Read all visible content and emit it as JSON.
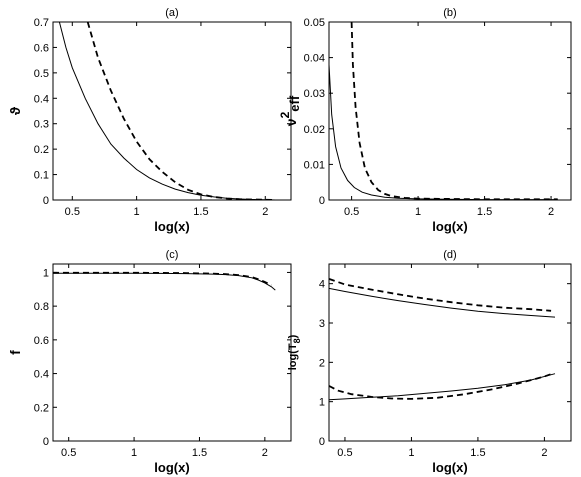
{
  "chart_data": [
    {
      "type": "line",
      "title": "(a)",
      "xlabel": "log(x)",
      "ylabel": "ϑ",
      "xlim": [
        0.35,
        2.2
      ],
      "ylim": [
        0,
        0.7
      ],
      "xticks": [
        0.5,
        1,
        1.5,
        2
      ],
      "xtick_labels": [
        "0.5",
        "1",
        "1.5",
        "2"
      ],
      "yticks": [
        0,
        0.1,
        0.2,
        0.3,
        0.4,
        0.5,
        0.6,
        0.7
      ],
      "ytick_labels": [
        "0",
        "0.1",
        "0.2",
        "0.3",
        "0.4",
        "0.5",
        "0.6",
        "0.7"
      ],
      "grid": false,
      "series": [
        {
          "style": "solid",
          "color": "#000000",
          "x": [
            0.4,
            0.45,
            0.5,
            0.6,
            0.7,
            0.8,
            0.9,
            1.0,
            1.1,
            1.2,
            1.3,
            1.4,
            1.5,
            1.6,
            1.7,
            1.8,
            1.9,
            2.0,
            2.08
          ],
          "y": [
            0.7,
            0.6,
            0.52,
            0.4,
            0.3,
            0.22,
            0.165,
            0.12,
            0.087,
            0.062,
            0.043,
            0.029,
            0.019,
            0.012,
            0.007,
            0.004,
            0.002,
            0.001,
            0.0
          ]
        },
        {
          "style": "dashed",
          "color": "#000000",
          "x": [
            0.62,
            0.7,
            0.8,
            0.9,
            1.0,
            1.1,
            1.2,
            1.3,
            1.4,
            1.5,
            1.6,
            1.7,
            1.8,
            1.9,
            2.0,
            2.08
          ],
          "y": [
            0.7,
            0.56,
            0.43,
            0.32,
            0.23,
            0.16,
            0.11,
            0.07,
            0.04,
            0.022,
            0.012,
            0.006,
            0.003,
            0.002,
            0.001,
            0.0
          ]
        }
      ]
    },
    {
      "type": "line",
      "title": "(b)",
      "xlabel": "log(x)",
      "ylabel": "ν",
      "ylabel_superscript": "2",
      "ylabel_subscript": "eff",
      "xlim": [
        0.33,
        2.15
      ],
      "ylim": [
        0,
        0.05
      ],
      "xticks": [
        0.5,
        1,
        1.5,
        2
      ],
      "xtick_labels": [
        "0.5",
        "1",
        "1.5",
        "2"
      ],
      "yticks": [
        0,
        0.01,
        0.02,
        0.03,
        0.04,
        0.05
      ],
      "ytick_labels": [
        "0",
        "0.01",
        "0.02",
        "0.03",
        "0.04",
        "0.05"
      ],
      "grid": false,
      "series": [
        {
          "style": "solid",
          "color": "#000000",
          "x": [
            0.33,
            0.35,
            0.38,
            0.42,
            0.47,
            0.52,
            0.58,
            0.65,
            0.75,
            0.85,
            1.0,
            1.2,
            1.5,
            1.8,
            2.05
          ],
          "y": [
            0.038,
            0.024,
            0.015,
            0.009,
            0.0055,
            0.0035,
            0.0022,
            0.0014,
            0.0008,
            0.0005,
            0.0003,
            0.0002,
            0.0001,
            0.0001,
            0.0001
          ]
        },
        {
          "style": "dashed",
          "color": "#000000",
          "x": [
            0.5,
            0.51,
            0.53,
            0.56,
            0.6,
            0.65,
            0.7,
            0.75,
            0.8,
            0.9,
            1.0,
            1.2,
            1.5,
            1.8,
            2.05
          ],
          "y": [
            0.05,
            0.038,
            0.026,
            0.016,
            0.009,
            0.005,
            0.0028,
            0.0017,
            0.0011,
            0.0006,
            0.0004,
            0.0003,
            0.0002,
            0.0002,
            0.0002
          ]
        }
      ]
    },
    {
      "type": "line",
      "title": "(c)",
      "xlabel": "log(x)",
      "ylabel": "f",
      "xlim": [
        0.38,
        2.2
      ],
      "ylim": [
        0,
        1.05
      ],
      "xticks": [
        0.5,
        1,
        1.5,
        2
      ],
      "xtick_labels": [
        "0.5",
        "1",
        "1.5",
        "2"
      ],
      "yticks": [
        0,
        0.2,
        0.4,
        0.6,
        0.8,
        1
      ],
      "ytick_labels": [
        "0",
        "0.2",
        "0.4",
        "0.6",
        "0.8",
        "1"
      ],
      "grid": false,
      "series": [
        {
          "style": "solid",
          "color": "#000000",
          "x": [
            0.38,
            0.6,
            0.8,
            1.0,
            1.2,
            1.4,
            1.6,
            1.7,
            1.8,
            1.9,
            1.95,
            2.0,
            2.05,
            2.08
          ],
          "y": [
            0.995,
            0.995,
            0.995,
            0.995,
            0.994,
            0.993,
            0.99,
            0.987,
            0.981,
            0.968,
            0.955,
            0.938,
            0.915,
            0.895
          ]
        },
        {
          "style": "dashed",
          "color": "#000000",
          "x": [
            0.38,
            0.6,
            0.8,
            1.0,
            1.2,
            1.4,
            1.6,
            1.7,
            1.8,
            1.9,
            1.95,
            2.0,
            2.05
          ],
          "y": [
            0.998,
            0.998,
            0.998,
            0.998,
            0.997,
            0.996,
            0.993,
            0.99,
            0.984,
            0.972,
            0.96,
            0.944,
            0.925
          ]
        }
      ]
    },
    {
      "type": "line",
      "title": "(d)",
      "xlabel": "log(x)",
      "ylabel": "log(T",
      "ylabel_subscript": "8",
      "ylabel_suffix": ")",
      "xlim": [
        0.38,
        2.2
      ],
      "ylim": [
        0,
        4.5
      ],
      "xticks": [
        0.5,
        1,
        1.5,
        2
      ],
      "xtick_labels": [
        "0.5",
        "1",
        "1.5",
        "2"
      ],
      "yticks": [
        0,
        1,
        2,
        3,
        4
      ],
      "ytick_labels": [
        "0",
        "1",
        "2",
        "3",
        "4"
      ],
      "grid": false,
      "series": [
        {
          "style": "solid",
          "color": "#000000",
          "x": [
            0.38,
            0.5,
            0.7,
            0.9,
            1.1,
            1.3,
            1.5,
            1.7,
            1.9,
            2.08
          ],
          "y": [
            3.88,
            3.8,
            3.68,
            3.57,
            3.47,
            3.38,
            3.3,
            3.24,
            3.19,
            3.15
          ]
        },
        {
          "style": "dashed",
          "color": "#000000",
          "x": [
            0.38,
            0.5,
            0.7,
            0.9,
            1.1,
            1.3,
            1.5,
            1.7,
            1.9,
            2.05
          ],
          "y": [
            4.12,
            3.98,
            3.85,
            3.73,
            3.62,
            3.53,
            3.45,
            3.39,
            3.35,
            3.31
          ]
        },
        {
          "style": "solid",
          "color": "#000000",
          "x": [
            0.38,
            0.5,
            0.7,
            0.9,
            1.1,
            1.3,
            1.5,
            1.7,
            1.9,
            2.08
          ],
          "y": [
            1.05,
            1.07,
            1.11,
            1.15,
            1.21,
            1.27,
            1.34,
            1.43,
            1.55,
            1.71
          ]
        },
        {
          "style": "dashed",
          "color": "#000000",
          "x": [
            0.38,
            0.45,
            0.55,
            0.7,
            0.85,
            1.0,
            1.2,
            1.4,
            1.6,
            1.8,
            2.0,
            2.05
          ],
          "y": [
            1.4,
            1.28,
            1.19,
            1.12,
            1.08,
            1.07,
            1.1,
            1.19,
            1.31,
            1.46,
            1.64,
            1.7
          ]
        }
      ]
    }
  ]
}
